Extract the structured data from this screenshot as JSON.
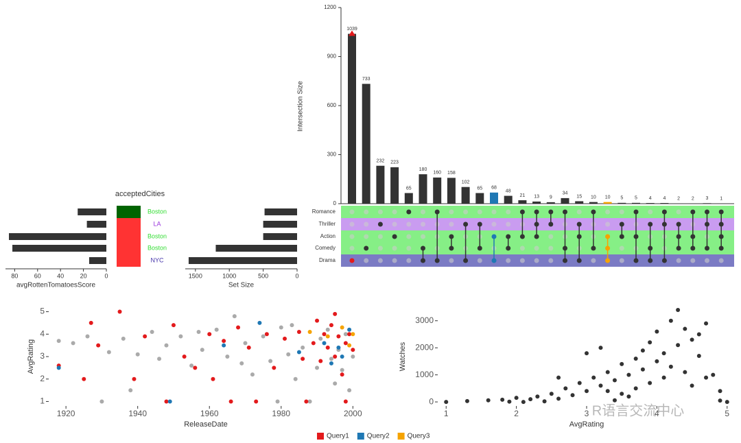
{
  "chart_data": [
    {
      "type": "bar",
      "ylabel": "Intersection Size",
      "values": [
        1039,
        733,
        232,
        223,
        65,
        180,
        160,
        158,
        102,
        65,
        68,
        48,
        21,
        13,
        9,
        34,
        15,
        10,
        10,
        5,
        5,
        4,
        4,
        2,
        2,
        3,
        1
      ],
      "colors": [
        "#333333",
        "#333333",
        "#333333",
        "#333333",
        "#333333",
        "#333333",
        "#333333",
        "#333333",
        "#333333",
        "#333333",
        "#1f78b4",
        "#333333",
        "#333333",
        "#333333",
        "#333333",
        "#333333",
        "#333333",
        "#333333",
        "#f5a300",
        "#333333",
        "#333333",
        "#333333",
        "#333333",
        "#333333",
        "#333333",
        "#333333",
        "#333333"
      ],
      "marker": {
        "index": 0,
        "color": "#e31a1c"
      },
      "ylim": [
        0,
        1200
      ],
      "yticks": [
        0,
        300,
        600,
        900,
        1200
      ]
    },
    {
      "type": "matrix",
      "memberships": [
        [
          4
        ],
        [
          3
        ],
        [
          1
        ],
        [
          2
        ],
        [
          0
        ],
        [
          3,
          4
        ],
        [
          0,
          4
        ],
        [
          2,
          3
        ],
        [
          1,
          4
        ],
        [
          1,
          3
        ],
        [
          2,
          4
        ],
        [
          2,
          3
        ],
        [
          0,
          2
        ],
        [
          0,
          1,
          2
        ],
        [
          0,
          1
        ],
        [
          0,
          3,
          4
        ],
        [
          1,
          2,
          4
        ],
        [
          0,
          3
        ],
        [
          2,
          3,
          4
        ],
        [
          1,
          2
        ],
        [
          0,
          2,
          4
        ],
        [
          1,
          3,
          4
        ],
        [
          0,
          1,
          4
        ],
        [
          1,
          2,
          3
        ],
        [
          0,
          2,
          3
        ],
        [
          0,
          1,
          3
        ],
        [
          0,
          1,
          2,
          3
        ]
      ],
      "dot_colors": [
        "#e31a1c",
        "#333333",
        "#333333",
        "#333333",
        "#333333",
        "#333333",
        "#333333",
        "#333333",
        "#333333",
        "#333333",
        "#1f78b4",
        "#333333",
        "#333333",
        "#333333",
        "#333333",
        "#333333",
        "#333333",
        "#333333",
        "#f5a300",
        "#333333",
        "#333333",
        "#333333",
        "#333333",
        "#333333",
        "#333333",
        "#333333",
        "#333333"
      ],
      "row_colors": [
        "#86ef86",
        "#c99cf0",
        "#86ef86",
        "#86ef86",
        "#7b7bc4"
      ]
    },
    {
      "type": "hbar",
      "xlabel": "Set Size",
      "categories": [
        "Romance",
        "Thriller",
        "Action",
        "Comedy",
        "Drama"
      ],
      "values": [
        480,
        500,
        500,
        1200,
        1600
      ],
      "color": "#333333",
      "xlim": [
        0,
        1650
      ],
      "xticks": [
        0,
        500,
        1000,
        1500
      ],
      "reversed": true
    },
    {
      "type": "hbar",
      "xlabel": "avgRottenTomatoesScore",
      "values": [
        25,
        17,
        85,
        82,
        15
      ],
      "color": "#333333",
      "xlim": [
        0,
        88
      ],
      "xticks": [
        0,
        20,
        40,
        60,
        80
      ],
      "reversed": true
    },
    {
      "type": "tile",
      "title": "acceptedCities",
      "labels": [
        "Boston",
        "LA",
        "Boston",
        "Boston",
        "NYC"
      ],
      "label_colors": [
        "#33dd33",
        "#9933dd",
        "#33dd33",
        "#33dd33",
        "#4433aa"
      ],
      "tile_colors": [
        "#006400",
        "#ff3333",
        "#ff3333",
        "#ff3333",
        "#ff3333"
      ]
    },
    {
      "type": "scatter",
      "xlabel": "ReleaseDate",
      "ylabel": "AvgRating",
      "xlim": [
        1915,
        2003
      ],
      "xticks": [
        1920,
        1940,
        1960,
        1980,
        2000
      ],
      "ylim": [
        0.8,
        5.2
      ],
      "yticks": [
        1,
        2,
        3,
        4,
        5
      ],
      "series": [
        {
          "color": "#aaaaaa",
          "x": [
            1918,
            1922,
            1926,
            1930,
            1932,
            1936,
            1938,
            1940,
            1944,
            1948,
            1952,
            1955,
            1958,
            1962,
            1965,
            1967,
            1970,
            1972,
            1975,
            1977,
            1980,
            1982,
            1984,
            1986,
            1988,
            1990,
            1991,
            1993,
            1994,
            1995,
            1996,
            1997,
            1998,
            1999,
            2000,
            1983,
            1979,
            1969,
            1957,
            1946
          ],
          "y": [
            3.7,
            3.6,
            3.9,
            1,
            3.2,
            3.8,
            1.5,
            3.1,
            4.1,
            3.5,
            3.9,
            2.6,
            3.3,
            4.2,
            3.0,
            4.8,
            3.6,
            2.2,
            3.9,
            2.8,
            4.3,
            3.1,
            2.0,
            3.4,
            1.0,
            2.5,
            3.8,
            4.2,
            2.9,
            1.8,
            3.3,
            2.4,
            4.0,
            1.5,
            3.0,
            4.4,
            1.0,
            2.7,
            4.1,
            2.9
          ]
        },
        {
          "name": "Query1",
          "color": "#e31a1c",
          "x": [
            1918,
            1925,
            1927,
            1929,
            1935,
            1939,
            1942,
            1948,
            1950,
            1953,
            1956,
            1960,
            1961,
            1964,
            1968,
            1971,
            1973,
            1976,
            1978,
            1981,
            1985,
            1987,
            1989,
            1990,
            1991,
            1992,
            1993,
            1994,
            1995,
            1996,
            1997,
            1998,
            1999,
            2000,
            1995,
            1998,
            1986,
            1966
          ],
          "y": [
            2.6,
            2.0,
            4.5,
            3.5,
            5.0,
            2.0,
            3.9,
            1.0,
            4.4,
            3.0,
            2.5,
            4.0,
            2.0,
            3.7,
            4.3,
            3.4,
            1.0,
            4.0,
            2.5,
            3.8,
            4.1,
            1.0,
            3.6,
            4.6,
            2.8,
            4.0,
            3.4,
            4.4,
            3.0,
            3.9,
            2.2,
            3.6,
            4.0,
            3.3,
            4.9,
            1.0,
            2.9,
            1.0
          ]
        },
        {
          "name": "Query2",
          "color": "#1f78b4",
          "x": [
            1918,
            1949,
            1964,
            1974,
            1985,
            1992,
            1994,
            1996,
            1999,
            1997
          ],
          "y": [
            2.5,
            1.0,
            3.5,
            4.5,
            3.2,
            3.6,
            2.7,
            3.4,
            4.2,
            3.0
          ]
        },
        {
          "name": "Query3",
          "color": "#f5a300",
          "x": [
            1988,
            1993,
            1997,
            1999,
            2000
          ],
          "y": [
            4.1,
            3.9,
            4.3,
            3.5,
            4.0
          ]
        }
      ]
    },
    {
      "type": "scatter",
      "xlabel": "AvgRating",
      "ylabel": "Watches",
      "xlim": [
        0.9,
        5.1
      ],
      "xticks": [
        1,
        2,
        3,
        4,
        5
      ],
      "ylim": [
        -150,
        3500
      ],
      "yticks": [
        0,
        1000,
        2000,
        3000
      ],
      "series": [
        {
          "color": "#333333",
          "x": [
            1,
            1.3,
            1.6,
            1.8,
            2,
            2.1,
            2.3,
            2.5,
            2.6,
            2.7,
            2.8,
            2.9,
            3,
            3.1,
            3.2,
            3.3,
            3.4,
            3.5,
            3.5,
            3.6,
            3.7,
            3.7,
            3.8,
            3.8,
            3.9,
            3.9,
            4,
            4,
            4.1,
            4.1,
            4.2,
            4.2,
            4.3,
            4.3,
            4.4,
            4.4,
            4.5,
            4.5,
            4.6,
            4.7,
            4.7,
            4.8,
            4.9,
            5,
            3.2,
            2.4,
            2.2,
            1.9,
            3.4,
            3.6,
            4.6,
            4.9,
            3,
            2.6,
            3.3
          ],
          "y": [
            0,
            30,
            60,
            80,
            150,
            0,
            200,
            300,
            120,
            500,
            250,
            700,
            400,
            900,
            600,
            1100,
            800,
            1400,
            300,
            1000,
            1600,
            500,
            1900,
            1200,
            2200,
            700,
            1500,
            2600,
            1800,
            900,
            3000,
            1300,
            3400,
            2100,
            2700,
            1100,
            2300,
            600,
            1700,
            2900,
            900,
            1000,
            400,
            0,
            2000,
            20,
            100,
            10,
            60,
            200,
            2500,
            50,
            1800,
            900,
            400
          ]
        }
      ]
    }
  ],
  "watermark": "R语言交流中心"
}
